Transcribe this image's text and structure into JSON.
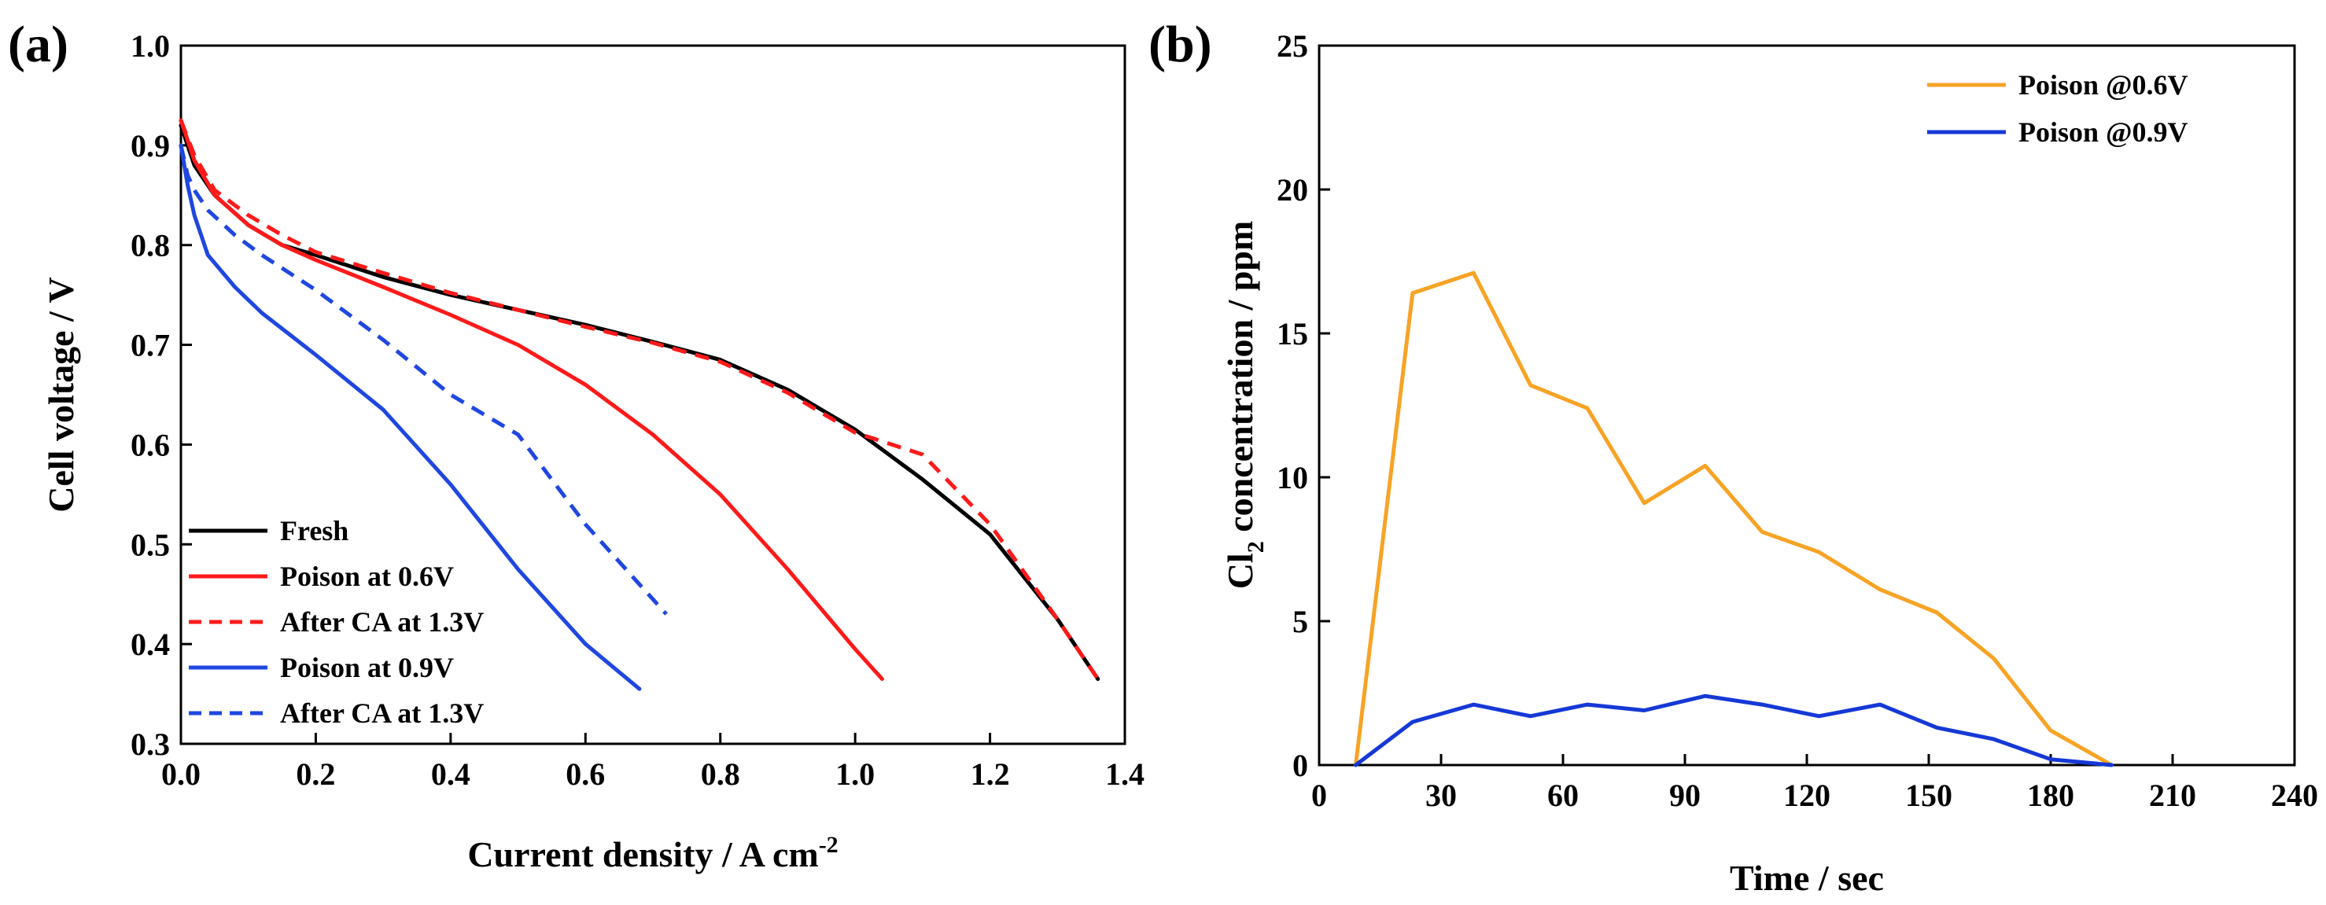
{
  "chart_data": [
    {
      "panel_label": "(a)",
      "type": "line",
      "xlabel": "Current density / A cm",
      "xlabel_sup": "-2",
      "ylabel": "Cell voltage / V",
      "xlim": [
        0,
        1.4
      ],
      "ylim": [
        0.3,
        1.0
      ],
      "x_ticks": [
        0.0,
        0.2,
        0.4,
        0.6,
        0.8,
        1.0,
        1.2,
        1.4
      ],
      "x_tick_labels": [
        "0.0",
        "0.2",
        "0.4",
        "0.6",
        "0.8",
        "1.0",
        "1.2",
        "1.4"
      ],
      "y_ticks": [
        0.3,
        0.4,
        0.5,
        0.6,
        0.7,
        0.8,
        0.9,
        1.0
      ],
      "y_tick_labels": [
        "0.3",
        "0.4",
        "0.5",
        "0.6",
        "0.7",
        "0.8",
        "0.9",
        "1.0"
      ],
      "legend_position": "bottom-left",
      "series": [
        {
          "name": "Fresh",
          "color": "#000000",
          "dash": "solid",
          "x": [
            0.0,
            0.02,
            0.05,
            0.1,
            0.15,
            0.2,
            0.3,
            0.4,
            0.5,
            0.6,
            0.7,
            0.8,
            0.9,
            1.0,
            1.1,
            1.2,
            1.3,
            1.36
          ],
          "y": [
            0.92,
            0.88,
            0.85,
            0.82,
            0.8,
            0.79,
            0.768,
            0.75,
            0.735,
            0.72,
            0.703,
            0.685,
            0.655,
            0.615,
            0.565,
            0.51,
            0.425,
            0.365
          ]
        },
        {
          "name": "Poison at 0.6V",
          "color": "#ff1a1a",
          "dash": "solid",
          "x": [
            0.0,
            0.02,
            0.05,
            0.1,
            0.15,
            0.2,
            0.3,
            0.4,
            0.5,
            0.6,
            0.7,
            0.8,
            0.9,
            1.0,
            1.04
          ],
          "y": [
            0.925,
            0.885,
            0.85,
            0.82,
            0.8,
            0.785,
            0.758,
            0.73,
            0.7,
            0.66,
            0.61,
            0.55,
            0.475,
            0.395,
            0.365
          ]
        },
        {
          "name": "After CA at 1.3V",
          "color": "#ff1a1a",
          "dash": "dashed",
          "x": [
            0.0,
            0.02,
            0.05,
            0.1,
            0.15,
            0.2,
            0.3,
            0.4,
            0.5,
            0.6,
            0.7,
            0.8,
            0.9,
            1.0,
            1.1,
            1.2,
            1.3,
            1.36
          ],
          "y": [
            0.925,
            0.89,
            0.855,
            0.83,
            0.81,
            0.793,
            0.772,
            0.752,
            0.735,
            0.718,
            0.702,
            0.683,
            0.652,
            0.612,
            0.59,
            0.52,
            0.425,
            0.365
          ]
        },
        {
          "name": "Poison at 0.9V",
          "color": "#1f47e0",
          "dash": "solid",
          "x": [
            0.0,
            0.01,
            0.02,
            0.04,
            0.08,
            0.12,
            0.2,
            0.3,
            0.4,
            0.5,
            0.6,
            0.68
          ],
          "y": [
            0.9,
            0.86,
            0.83,
            0.79,
            0.758,
            0.732,
            0.69,
            0.635,
            0.56,
            0.475,
            0.4,
            0.355
          ]
        },
        {
          "name": "After CA at 1.3V",
          "color": "#1f47e0",
          "dash": "dashed",
          "x": [
            0.0,
            0.01,
            0.02,
            0.04,
            0.08,
            0.12,
            0.2,
            0.3,
            0.4,
            0.5,
            0.6,
            0.72
          ],
          "y": [
            0.9,
            0.87,
            0.855,
            0.835,
            0.81,
            0.79,
            0.755,
            0.705,
            0.65,
            0.61,
            0.52,
            0.43
          ]
        }
      ]
    },
    {
      "panel_label": "(b)",
      "type": "line",
      "xlabel": "Time / sec",
      "ylabel_main": "Cl",
      "ylabel_sub": "2",
      "ylabel_rest": " concentration / ppm",
      "xlim": [
        0,
        240
      ],
      "ylim": [
        0,
        25
      ],
      "x_ticks": [
        0,
        30,
        60,
        90,
        120,
        150,
        180,
        210,
        240
      ],
      "x_tick_labels": [
        "0",
        "30",
        "60",
        "90",
        "120",
        "150",
        "180",
        "210",
        "240"
      ],
      "y_ticks": [
        0,
        5,
        10,
        15,
        20,
        25
      ],
      "y_tick_labels": [
        "0",
        "5",
        "10",
        "15",
        "20",
        "25"
      ],
      "legend_position": "top-right",
      "series": [
        {
          "name": "Poison @0.6V",
          "color": "#f7a325",
          "dash": "solid",
          "x": [
            9,
            23,
            38,
            52,
            66,
            80,
            95,
            109,
            123,
            138,
            152,
            166,
            180,
            195
          ],
          "y": [
            0,
            16.4,
            17.1,
            13.2,
            12.4,
            9.1,
            10.4,
            8.1,
            7.4,
            6.1,
            5.3,
            3.7,
            1.2,
            0
          ]
        },
        {
          "name": "Poison @0.9V",
          "color": "#1538d6",
          "dash": "solid",
          "x": [
            9,
            23,
            38,
            52,
            66,
            80,
            95,
            109,
            123,
            138,
            152,
            166,
            180,
            195
          ],
          "y": [
            0,
            1.5,
            2.1,
            1.7,
            2.1,
            1.9,
            2.4,
            2.1,
            1.7,
            2.1,
            1.3,
            0.9,
            0.2,
            0
          ]
        }
      ]
    }
  ]
}
